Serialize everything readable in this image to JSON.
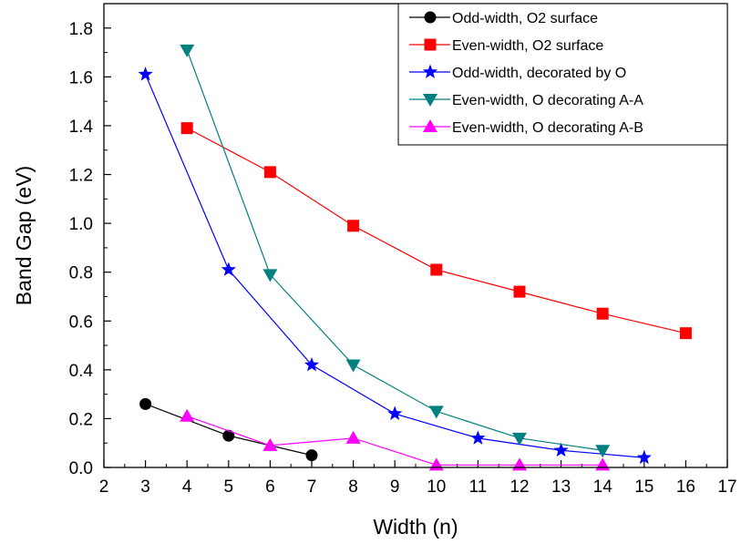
{
  "chart_data": {
    "type": "line",
    "title": "",
    "xlabel": "Width (n)",
    "ylabel": "Band Gap (eV)",
    "xlim": [
      2,
      17
    ],
    "ylim": [
      0.0,
      1.9
    ],
    "x_ticks": [
      2,
      3,
      4,
      5,
      6,
      7,
      8,
      9,
      10,
      11,
      12,
      13,
      14,
      15,
      16,
      17
    ],
    "x_tick_labels": [
      "2",
      "3",
      "4",
      "5",
      "6",
      "7",
      "8",
      "9",
      "10",
      "11",
      "12",
      "13",
      "14",
      "15",
      "16",
      "17"
    ],
    "y_ticks": [
      0.0,
      0.2,
      0.4,
      0.6,
      0.8,
      1.0,
      1.2,
      1.4,
      1.6,
      1.8
    ],
    "y_tick_labels": [
      "0.0",
      "0.2",
      "0.4",
      "0.6",
      "0.8",
      "1.0",
      "1.2",
      "1.4",
      "1.6",
      "1.8"
    ],
    "legend_position": "top-right",
    "grid": false,
    "series": [
      {
        "name": "Odd-width, O2 surface",
        "color": "#000000",
        "marker": "circle",
        "x": [
          3,
          5,
          7
        ],
        "y": [
          0.26,
          0.13,
          0.05
        ]
      },
      {
        "name": "Even-width, O2 surface",
        "color": "#ff0000",
        "marker": "square",
        "x": [
          4,
          6,
          8,
          10,
          12,
          14,
          16
        ],
        "y": [
          1.39,
          1.21,
          0.99,
          0.81,
          0.72,
          0.63,
          0.55
        ]
      },
      {
        "name": "Odd-width, decorated by O",
        "color": "#0000ff",
        "marker": "star",
        "x": [
          3,
          5,
          7,
          9,
          11,
          13,
          15
        ],
        "y": [
          1.61,
          0.81,
          0.42,
          0.22,
          0.12,
          0.07,
          0.04
        ]
      },
      {
        "name": "Even-width, O decorating A-A",
        "color": "#008080",
        "marker": "triangle-down",
        "x": [
          4,
          6,
          8,
          10,
          12,
          14
        ],
        "y": [
          1.71,
          0.79,
          0.42,
          0.23,
          0.12,
          0.07
        ]
      },
      {
        "name": "Even-width, O decorating A-B",
        "color": "#ff00ff",
        "marker": "triangle-up",
        "x": [
          4,
          6,
          8,
          10,
          12,
          14
        ],
        "y": [
          0.21,
          0.09,
          0.12,
          0.01,
          0.01,
          0.01
        ]
      }
    ]
  }
}
